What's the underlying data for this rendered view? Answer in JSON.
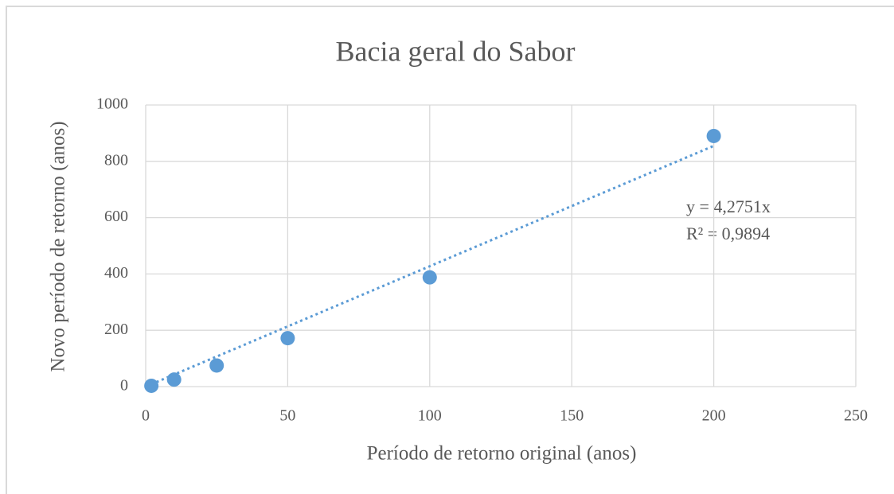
{
  "chart_data": {
    "type": "scatter",
    "title": "Bacia geral do Sabor",
    "xlabel": "Período de retorno original (anos)",
    "ylabel": "Novo período de retorno (anos)",
    "series": [
      {
        "color": "#5b9bd5",
        "x": [
          2,
          10,
          25,
          50,
          100,
          200
        ],
        "values": [
          3,
          25,
          75,
          172,
          388,
          890
        ]
      }
    ],
    "xlim": [
      0,
      250
    ],
    "xticks": [
      0,
      50,
      100,
      150,
      200,
      250
    ],
    "ylim": [
      0,
      1000
    ],
    "yticks": [
      0,
      200,
      400,
      600,
      800,
      1000
    ],
    "grid": true,
    "trendline": "linear-through-origin",
    "annotations": [
      "y = 4,2751x",
      "R² = 0,9894"
    ]
  }
}
